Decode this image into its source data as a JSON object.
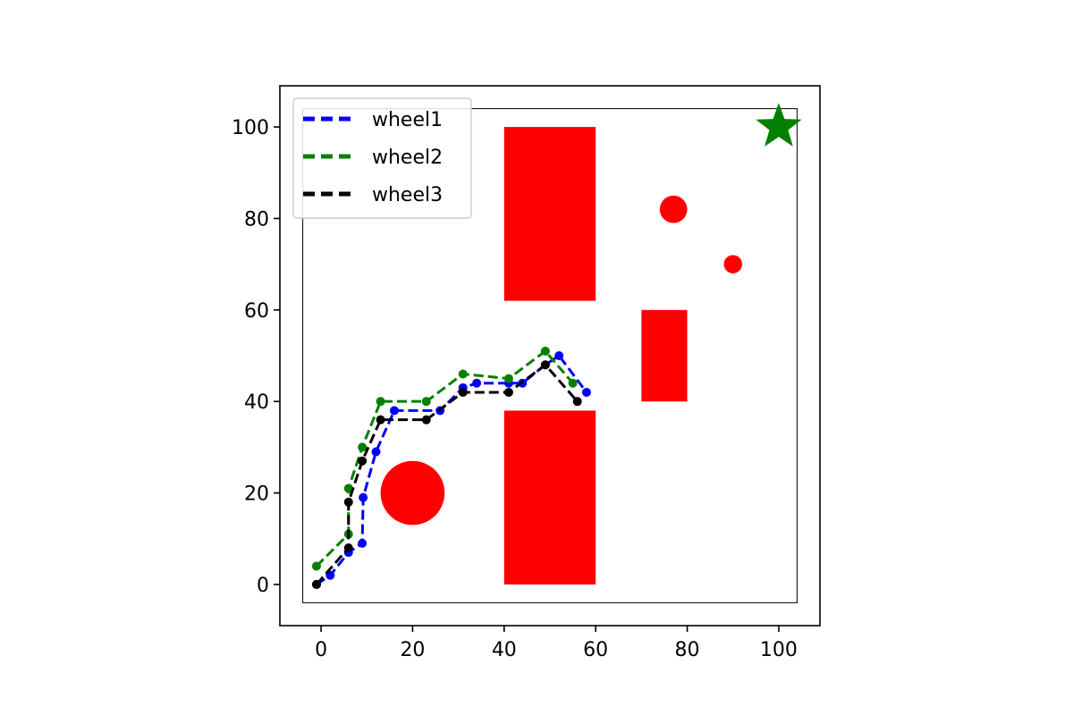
{
  "chart_data": {
    "type": "line",
    "title": "",
    "xlabel": "",
    "ylabel": "",
    "xlim": [
      -9,
      109
    ],
    "ylim": [
      -9,
      109
    ],
    "xticks": [
      0,
      20,
      40,
      60,
      80,
      100
    ],
    "yticks": [
      0,
      20,
      40,
      60,
      80,
      100
    ],
    "legend_position": "top-left",
    "series": [
      {
        "name": "wheel1",
        "color": "#0000ff",
        "x": [
          -1,
          2,
          6,
          9,
          9.2,
          12,
          16,
          26,
          31,
          34,
          41,
          44,
          49,
          52,
          58
        ],
        "y": [
          0,
          2,
          7,
          9,
          19,
          29,
          38,
          38,
          43,
          44,
          44,
          44,
          48,
          50,
          42
        ]
      },
      {
        "name": "wheel2",
        "color": "#008000",
        "x": [
          -1,
          6,
          6,
          9,
          13,
          23,
          31,
          41,
          49,
          55
        ],
        "y": [
          4,
          11,
          21,
          30,
          40,
          40,
          46,
          45,
          51,
          44
        ]
      },
      {
        "name": "wheel3",
        "color": "#000000",
        "x": [
          -1,
          6,
          6,
          9,
          13,
          23,
          31,
          41,
          49,
          56
        ],
        "y": [
          0,
          8,
          18,
          27,
          36,
          36,
          42,
          42,
          48,
          40
        ]
      }
    ],
    "boundary": {
      "x0": -4,
      "x1": 104,
      "y0": -4,
      "y1": 104
    },
    "obstacles": {
      "color": "#ff0000",
      "rects": [
        {
          "x0": 40,
          "x1": 60,
          "y0": 62,
          "y1": 100
        },
        {
          "x0": 40,
          "x1": 60,
          "y0": 0,
          "y1": 38
        },
        {
          "x0": 70,
          "x1": 80,
          "y0": 40,
          "y1": 60
        }
      ],
      "circles": [
        {
          "cx": 20,
          "cy": 20,
          "r": 7
        },
        {
          "cx": 77,
          "cy": 82,
          "r": 3
        },
        {
          "cx": 90,
          "cy": 70,
          "r": 2
        }
      ]
    },
    "goal": {
      "x": 100,
      "y": 100,
      "color": "#008000",
      "marker": "star"
    }
  }
}
